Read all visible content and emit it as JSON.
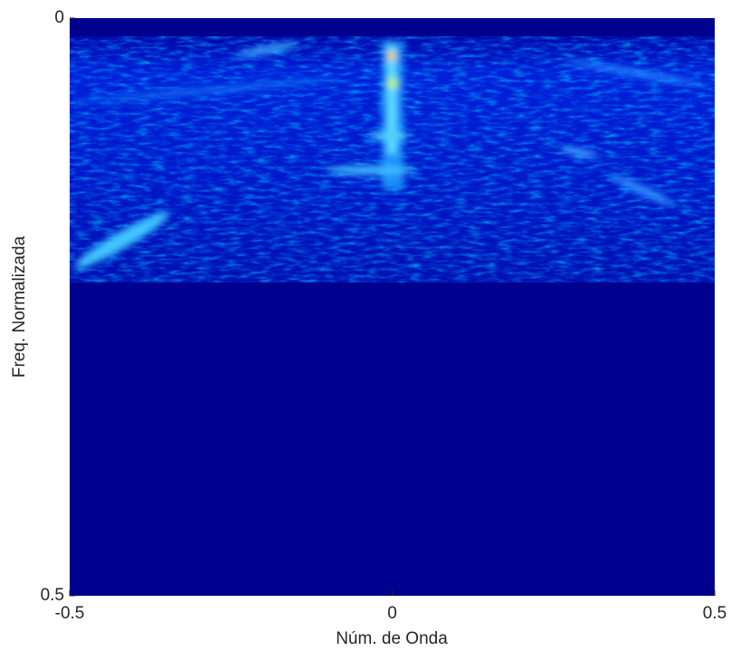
{
  "chart_data": {
    "type": "image",
    "xlabel": "Núm. de Onda",
    "ylabel": "Freq. Normalizada",
    "xlim": [
      -0.5,
      0.5
    ],
    "xticks": [
      -0.5,
      0,
      0.5
    ],
    "ylim": [
      0,
      0.5
    ],
    "yticks": [
      0,
      0.5
    ],
    "y_reversed": true
  }
}
